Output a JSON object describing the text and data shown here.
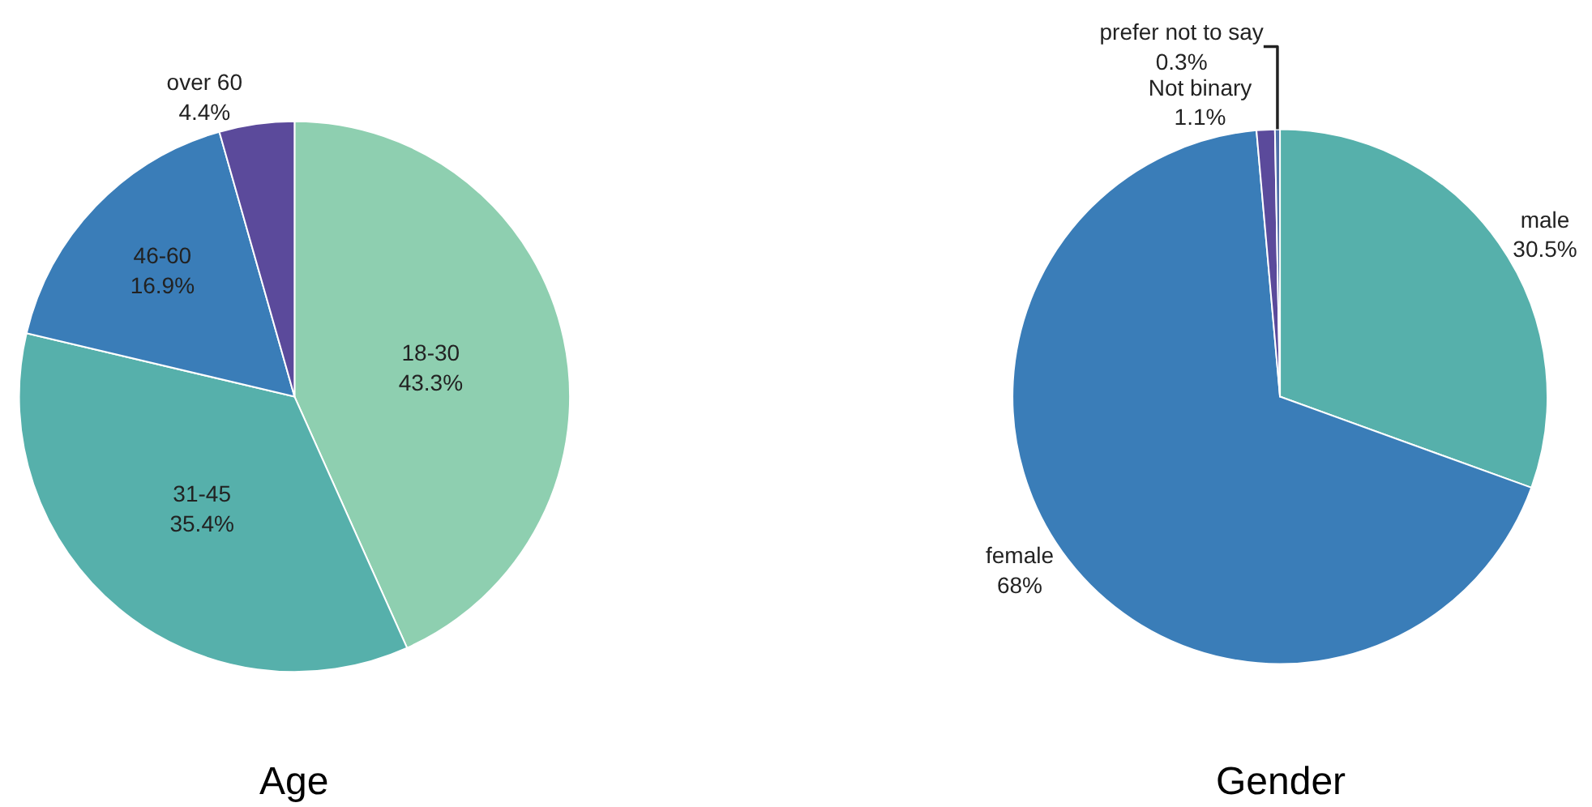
{
  "chart_data": [
    {
      "type": "pie",
      "title": "Age",
      "categories": [
        "18-30",
        "31-45",
        "46-60",
        "over 60"
      ],
      "values": [
        43.3,
        35.4,
        16.9,
        4.4
      ],
      "value_labels": [
        "43.3%",
        "35.4%",
        "16.9%",
        "4.4%"
      ],
      "colors": [
        "#8ecfb0",
        "#56b0ab",
        "#3a7db8",
        "#5b4a9b"
      ]
    },
    {
      "type": "pie",
      "title": "Gender",
      "categories": [
        "male",
        "female",
        "Not binary",
        "prefer not to say"
      ],
      "values": [
        30.5,
        68,
        1.1,
        0.3
      ],
      "value_labels": [
        "30.5%",
        "68%",
        "1.1%",
        "0.3%"
      ],
      "colors": [
        "#56b0ab",
        "#3a7db8",
        "#5b4a9b",
        "#4f6fa8"
      ]
    }
  ]
}
